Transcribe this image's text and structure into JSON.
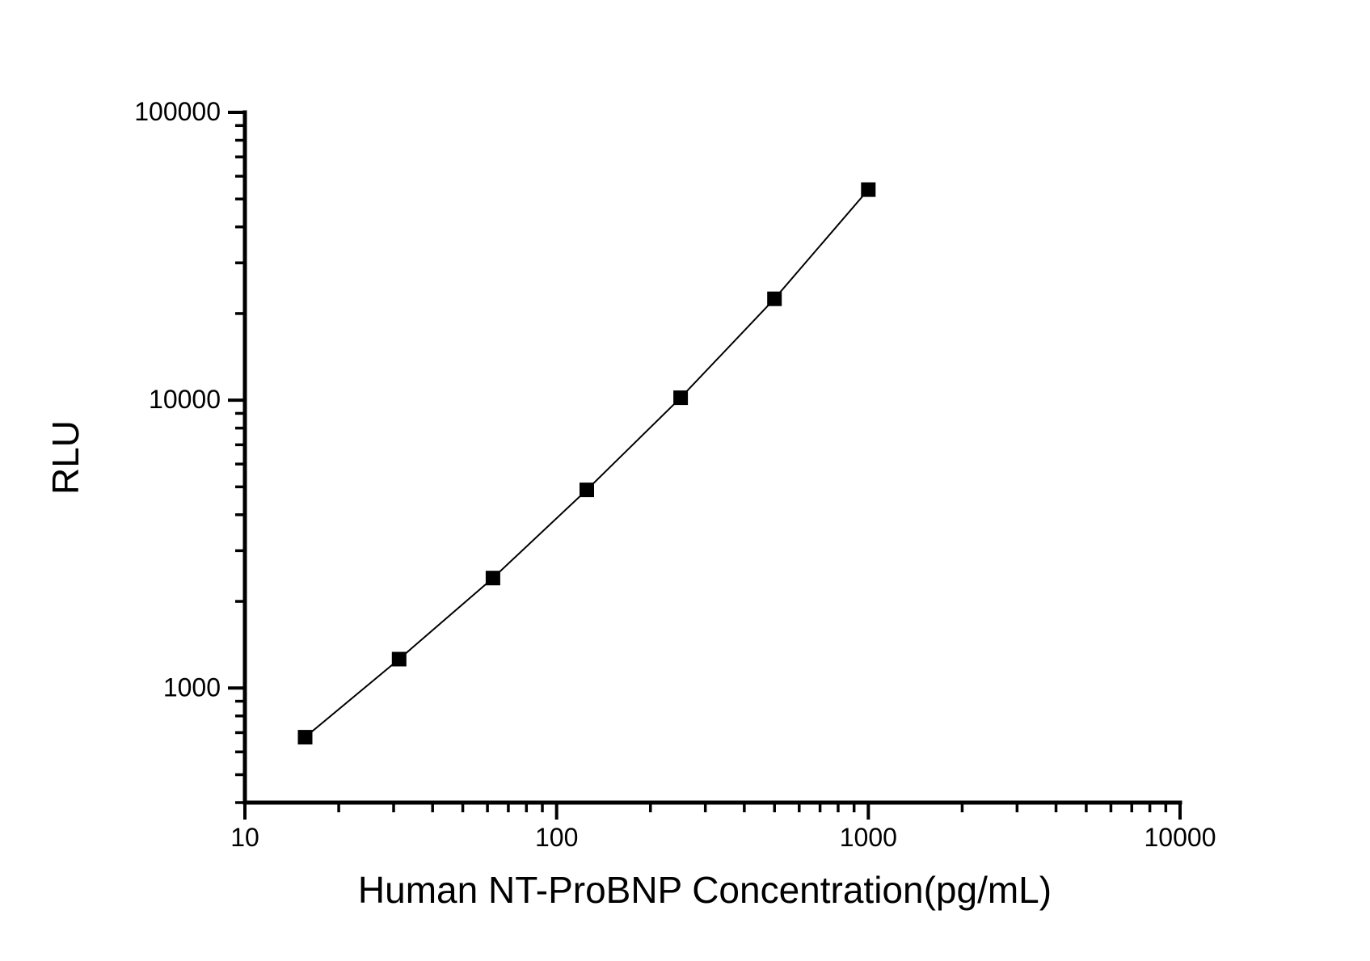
{
  "chart_data": {
    "type": "scatter",
    "subtype": "scatter-line-log-log",
    "title": "",
    "xlabel": "Human NT-ProBNP Concentration(pg/mL)",
    "ylabel": "RLU",
    "x_scale": "log",
    "y_scale": "log",
    "xlim": [
      10,
      10000
    ],
    "ylim": [
      400,
      100000
    ],
    "grid": "off",
    "legend": "none",
    "series": [
      {
        "name": "standard-curve",
        "marker": "filled-square",
        "marker_color": "#000000",
        "line_color": "#000000",
        "x": [
          15.6,
          31.25,
          62.5,
          125,
          250,
          500,
          1000
        ],
        "y": [
          675,
          1260,
          2410,
          4880,
          10200,
          22500,
          53900
        ]
      }
    ],
    "x_major_ticks": [
      10,
      100,
      1000,
      10000
    ],
    "x_major_tick_labels": [
      "10",
      "100",
      "1000",
      "10000"
    ],
    "y_major_ticks": [
      1000,
      10000,
      100000
    ],
    "y_major_tick_labels": [
      "1000",
      "10000",
      "100000"
    ],
    "tick_style": "outward, log minor ticks 2-9 per decade",
    "axis_color": "#000000",
    "background": "#ffffff"
  }
}
